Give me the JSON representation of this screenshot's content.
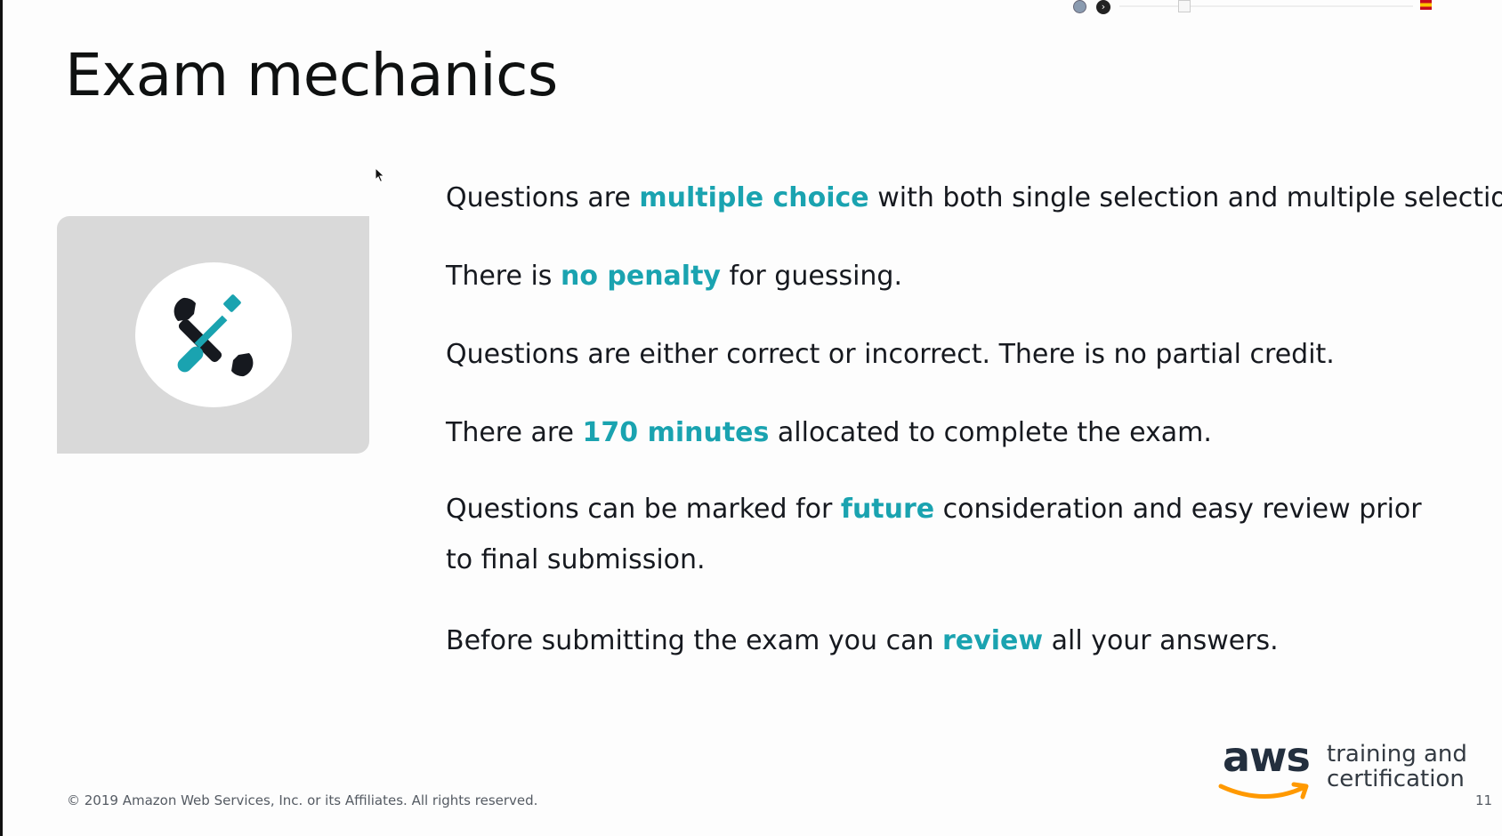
{
  "slide": {
    "title": "Exam mechanics",
    "bullets": [
      {
        "pre": "Questions are ",
        "hl": "multiple choice",
        "post": " with both single selection and multiple selection."
      },
      {
        "pre": "There is ",
        "hl": "no penalty",
        "post": " for guessing."
      },
      {
        "text": "Questions are either correct or incorrect.  There is no partial credit."
      },
      {
        "pre": "There are ",
        "hl": "170 minutes",
        "post": " allocated to complete the exam."
      },
      {
        "pre": "Questions can be marked for ",
        "hl": "future",
        "post": " consideration and easy review prior to final submission."
      },
      {
        "pre": "Before submitting the exam you can ",
        "hl": "review",
        "post": " all your answers."
      }
    ],
    "icon": "tools-icon",
    "footer": "© 2019 Amazon Web Services, Inc. or its Affiliates. All rights reserved.",
    "page_number": "11"
  },
  "brand": {
    "logo_text": "aws",
    "tagline_line1": "training and",
    "tagline_line2": "certification"
  },
  "colors": {
    "accent": "#1aa3b0",
    "text": "#16191f",
    "icon_dark": "#16191f",
    "panel": "#d9d9d9",
    "aws_orange": "#ff9900"
  }
}
